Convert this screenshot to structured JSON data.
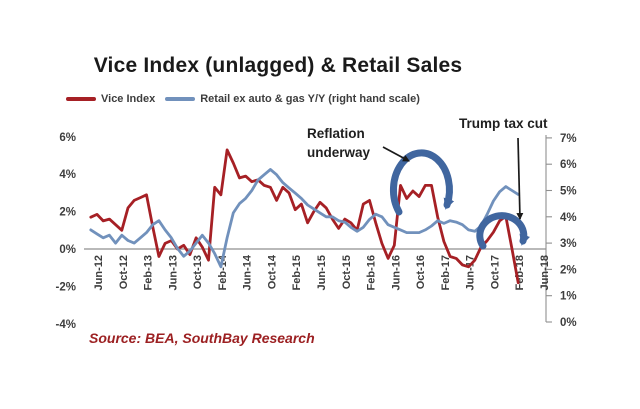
{
  "title": "Vice Index (unlagged) & Retail Sales",
  "legend": [
    {
      "label": "Vice Index",
      "color": "#a62025"
    },
    {
      "label": "Retail ex auto & gas Y/Y (right hand scale)",
      "color": "#7191bc"
    }
  ],
  "annotations": {
    "reflation": {
      "text": "Reflation\nunderway"
    },
    "trump": {
      "text": "Trump tax cut"
    },
    "arc_color": "#40669f",
    "arrow_color": "#1a1a1a"
  },
  "source": "Source: BEA, SouthBay Research",
  "colors": {
    "vice_index_line": "#a62025",
    "retail_line": "#7191bc",
    "axis_text": "#3d3d3d",
    "gridline": "#8f8f8f"
  },
  "chart_data": {
    "type": "line",
    "title": "Vice Index (unlagged) & Retail Sales",
    "x_start": "2012-05",
    "x_interval": "monthly",
    "x_tick_labels": [
      "Jun-12",
      "Oct-12",
      "Feb-13",
      "Jun-13",
      "Oct-13",
      "Feb-14",
      "Jun-14",
      "Oct-14",
      "Feb-15",
      "Jun-15",
      "Oct-15",
      "Feb-16",
      "Jun-16",
      "Oct-16",
      "Feb-17",
      "Jun-17",
      "Oct-17",
      "Feb-18",
      "Jun-18"
    ],
    "left_axis": {
      "tick_labels": [
        "6%",
        "4%",
        "2%",
        "0%",
        "-2%",
        "-4%"
      ],
      "min": -4,
      "max": 6,
      "measures": "Vice Index"
    },
    "right_axis": {
      "tick_labels": [
        "7%",
        "6%",
        "5%",
        "4%",
        "3%",
        "2%",
        "1%",
        "0%"
      ],
      "min": 0,
      "max": 7,
      "measures": "Retail ex auto & gas Y/Y"
    },
    "grid": "zero-line-only",
    "legend_position": "top-left",
    "series": [
      {
        "name": "Vice Index",
        "axis": "left",
        "color": "#a62025",
        "values": [
          1.7,
          1.85,
          1.5,
          1.6,
          1.3,
          1.0,
          2.2,
          2.6,
          2.75,
          2.9,
          1.2,
          -0.4,
          0.3,
          0.45,
          0.0,
          0.2,
          -0.3,
          0.6,
          0.1,
          -0.6,
          3.3,
          2.9,
          5.3,
          4.6,
          3.8,
          3.9,
          3.6,
          3.7,
          3.4,
          3.3,
          2.6,
          3.3,
          3.0,
          2.1,
          2.4,
          1.4,
          2.0,
          2.5,
          2.2,
          1.6,
          1.1,
          1.6,
          1.4,
          1.0,
          2.4,
          2.6,
          1.4,
          0.3,
          -0.5,
          0.2,
          3.4,
          2.7,
          3.1,
          2.8,
          3.4,
          3.4,
          1.7,
          0.4,
          -0.4,
          -0.5,
          -0.85,
          -0.95,
          -0.6,
          0.1,
          0.45,
          0.9,
          1.5,
          1.75,
          0.0,
          -1.8
        ]
      },
      {
        "name": "Retail ex auto & gas Y/Y",
        "axis": "right",
        "color": "#7191bc",
        "values": [
          3.5,
          3.35,
          3.2,
          3.3,
          3.0,
          3.3,
          3.1,
          3.0,
          3.2,
          3.4,
          3.7,
          3.85,
          3.5,
          3.2,
          2.8,
          2.5,
          2.7,
          3.0,
          3.3,
          3.0,
          2.6,
          2.1,
          3.2,
          4.15,
          4.5,
          4.7,
          5.0,
          5.4,
          5.6,
          5.8,
          5.6,
          5.3,
          5.1,
          4.9,
          4.7,
          4.45,
          4.3,
          4.15,
          4.0,
          4.0,
          3.85,
          3.8,
          3.6,
          3.45,
          3.6,
          3.9,
          4.1,
          4.0,
          3.7,
          3.6,
          3.5,
          3.4,
          3.4,
          3.4,
          3.5,
          3.65,
          3.85,
          3.75,
          3.85,
          3.8,
          3.7,
          3.5,
          3.45,
          3.65,
          4.1,
          4.6,
          4.95,
          5.15,
          5.0,
          4.85
        ]
      }
    ]
  }
}
